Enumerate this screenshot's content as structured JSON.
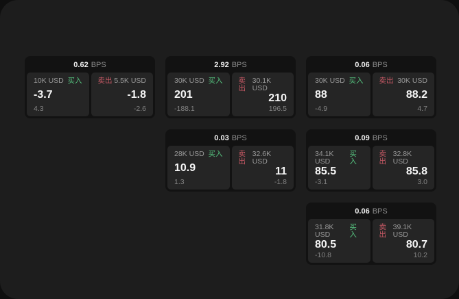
{
  "units": {
    "bps": "BPS"
  },
  "labels": {
    "buy": "买入",
    "sell": "卖出"
  },
  "colors": {
    "buy_green": "#55c17e",
    "sell_red": "#ca5a66",
    "surface": "#1d1d1d",
    "card": "#121212",
    "panel": "#252525"
  },
  "cards": [
    {
      "bps": "0.62",
      "col": 0,
      "row": 0,
      "buy": {
        "size": "10K USD",
        "price": "-3.7",
        "delta": "4.3"
      },
      "sell": {
        "size": "5.5K USD",
        "price": "-1.8",
        "delta": "-2.6"
      }
    },
    {
      "bps": "2.92",
      "col": 1,
      "row": 0,
      "buy": {
        "size": "30K USD",
        "price": "201",
        "delta": "-188.1"
      },
      "sell": {
        "size": "30.1K USD",
        "price": "210",
        "delta": "196.5"
      }
    },
    {
      "bps": "0.06",
      "col": 2,
      "row": 0,
      "buy": {
        "size": "30K USD",
        "price": "88",
        "delta": "-4.9"
      },
      "sell": {
        "size": "30K USD",
        "price": "88.2",
        "delta": "4.7"
      }
    },
    {
      "bps": "0.03",
      "col": 1,
      "row": 1,
      "buy": {
        "size": "28K USD",
        "price": "10.9",
        "delta": "1.3"
      },
      "sell": {
        "size": "32.6K USD",
        "price": "11",
        "delta": "-1.8"
      }
    },
    {
      "bps": "0.09",
      "col": 2,
      "row": 1,
      "buy": {
        "size": "34.1K USD",
        "price": "85.5",
        "delta": "-3.1"
      },
      "sell": {
        "size": "32.8K USD",
        "price": "85.8",
        "delta": "3.0"
      }
    },
    {
      "bps": "0.06",
      "col": 2,
      "row": 2,
      "buy": {
        "size": "31.8K USD",
        "price": "80.5",
        "delta": "-10.8"
      },
      "sell": {
        "size": "39.1K USD",
        "price": "80.7",
        "delta": "10.2"
      }
    }
  ]
}
